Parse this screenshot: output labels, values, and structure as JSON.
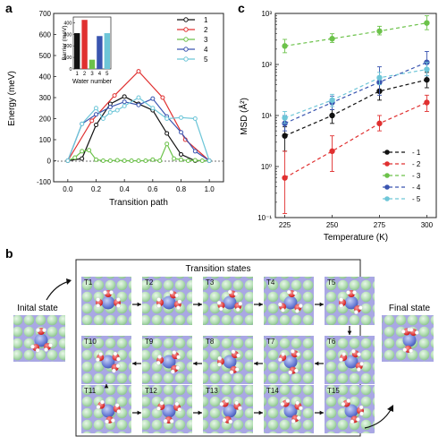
{
  "panel_labels": {
    "a": "a",
    "b": "b",
    "c": "c"
  },
  "colors": {
    "s1": "#111111",
    "s2": "#e03030",
    "s3": "#6cc24a",
    "s4": "#3a55b0",
    "s5": "#6ec6d8"
  },
  "chart_data": [
    {
      "type": "line",
      "ylabel": "Energy (meV)",
      "xlabel": "Transition path",
      "xlim": [
        -0.1,
        1.1
      ],
      "ylim": [
        -100,
        700
      ],
      "xticks": [
        "0.0",
        "0.2",
        "0.4",
        "0.6",
        "0.8",
        "1.0"
      ],
      "yticks": [
        "-100",
        "0",
        "100",
        "200",
        "300",
        "400",
        "500",
        "600",
        "700"
      ],
      "legend": [
        "1",
        "2",
        "3",
        "4",
        "5"
      ],
      "series": [
        {
          "name": "1",
          "x": [
            0,
            0.1,
            0.2,
            0.3,
            0.4,
            0.5,
            0.6,
            0.7,
            0.8,
            0.9,
            1.0
          ],
          "y": [
            0,
            10,
            170,
            270,
            305,
            270,
            240,
            130,
            30,
            0,
            0
          ]
        },
        {
          "name": "2",
          "x": [
            0,
            0.17,
            0.33,
            0.5,
            0.67,
            0.83,
            1.0
          ],
          "y": [
            0,
            190,
            310,
            425,
            300,
            100,
            0
          ]
        },
        {
          "name": "3",
          "x": [
            0,
            0.05,
            0.1,
            0.15,
            0.2,
            0.25,
            0.3,
            0.35,
            0.4,
            0.45,
            0.5,
            0.55,
            0.6,
            0.65,
            0.7,
            0.75,
            0.8,
            0.85,
            0.9,
            0.95,
            1.0
          ],
          "y": [
            0,
            15,
            45,
            50,
            5,
            0,
            0,
            2,
            0,
            0,
            0,
            0,
            5,
            0,
            80,
            10,
            5,
            0,
            2,
            0,
            0
          ]
        },
        {
          "name": "4",
          "x": [
            0,
            0.1,
            0.2,
            0.3,
            0.4,
            0.5,
            0.6,
            0.7,
            0.8,
            0.9,
            1.0
          ],
          "y": [
            0,
            175,
            220,
            255,
            280,
            265,
            295,
            210,
            135,
            45,
            0
          ]
        },
        {
          "name": "5",
          "x": [
            0,
            0.1,
            0.2,
            0.25,
            0.3,
            0.35,
            0.4,
            0.5,
            0.6,
            0.7,
            0.8,
            0.9,
            1.0
          ],
          "y": [
            0,
            175,
            250,
            200,
            230,
            240,
            260,
            300,
            250,
            200,
            205,
            200,
            0
          ]
        }
      ],
      "inset": {
        "type": "bar",
        "ylabel": "Barrier (meV)",
        "xlabel": "Water number",
        "categories": [
          "1",
          "2",
          "3",
          "4",
          "5"
        ],
        "values": [
          310,
          425,
          80,
          285,
          310
        ],
        "ylim": [
          0,
          450
        ],
        "yticks": [
          "0",
          "100",
          "200",
          "300",
          "400"
        ]
      }
    },
    {
      "type": "line",
      "ylabel": "MSD (Å²)",
      "xlabel": "Temperature (K)",
      "yscale": "log",
      "ylim": [
        0.1,
        1000
      ],
      "xlim": [
        220,
        305
      ],
      "xticks": [
        "225",
        "250",
        "275",
        "300"
      ],
      "yticks": [
        "10⁻¹",
        "10⁰",
        "10¹",
        "10²",
        "10³"
      ],
      "legend": [
        "1",
        "2",
        "3",
        "4",
        "5"
      ],
      "series": [
        {
          "name": "1",
          "x": [
            225,
            250,
            275,
            300
          ],
          "y": [
            4,
            10,
            30,
            50
          ],
          "err": [
            [
              2,
              6
            ],
            [
              7,
              13
            ],
            [
              20,
              42
            ],
            [
              35,
              70
            ]
          ]
        },
        {
          "name": "2",
          "x": [
            225,
            250,
            275,
            300
          ],
          "y": [
            0.6,
            2,
            7,
            18
          ],
          "err": [
            [
              0.12,
              2
            ],
            [
              0.8,
              4
            ],
            [
              5,
              10
            ],
            [
              12,
              25
            ]
          ]
        },
        {
          "name": "3",
          "x": [
            225,
            250,
            275,
            300
          ],
          "y": [
            230,
            320,
            450,
            650
          ],
          "err": [
            [
              170,
              310
            ],
            [
              270,
              400
            ],
            [
              380,
              560
            ],
            [
              480,
              900
            ]
          ]
        },
        {
          "name": "4",
          "x": [
            225,
            250,
            275,
            300
          ],
          "y": [
            7,
            18,
            45,
            110
          ],
          "err": [
            [
              5,
              10
            ],
            [
              13,
              24
            ],
            [
              25,
              90
            ],
            [
              60,
              180
            ]
          ]
        },
        {
          "name": "5",
          "x": [
            225,
            250,
            275,
            300
          ],
          "y": [
            9,
            20,
            55,
            80
          ],
          "err": [
            [
              7,
              12
            ],
            [
              15,
              26
            ],
            [
              40,
              70
            ],
            [
              60,
              110
            ]
          ]
        }
      ]
    }
  ],
  "panel_b": {
    "title": "Transition states",
    "initial_label": "Inital state",
    "final_label": "Final state",
    "states": [
      "T1",
      "T2",
      "T3",
      "T4",
      "T5",
      "T10",
      "T9",
      "T8",
      "T7",
      "T6",
      "T11",
      "T12",
      "T13",
      "T14",
      "T15"
    ]
  }
}
